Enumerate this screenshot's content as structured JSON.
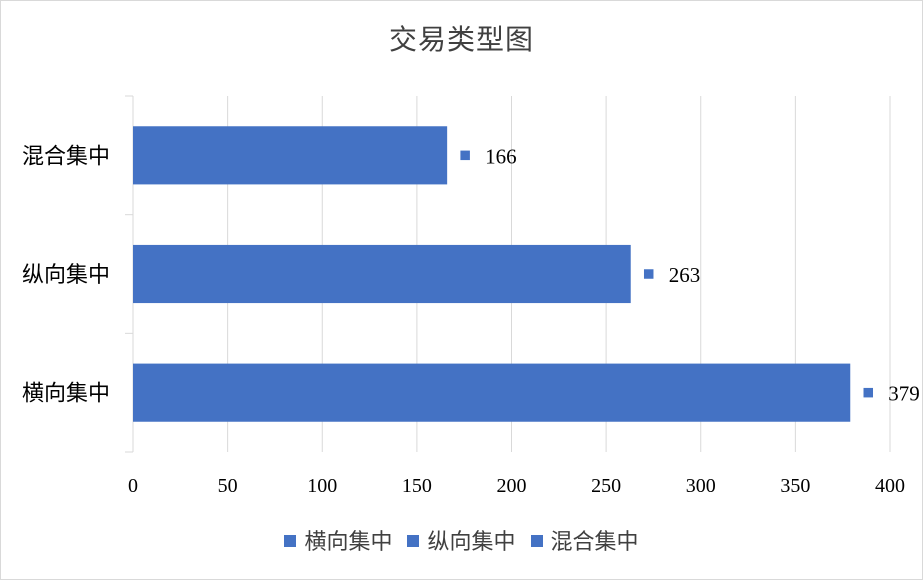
{
  "chart_data": {
    "type": "bar",
    "orientation": "horizontal",
    "title": "交易类型图",
    "categories": [
      "横向集中",
      "纵向集中",
      "混合集中"
    ],
    "values": [
      379,
      263,
      166
    ],
    "data_labels": [
      "379",
      "263",
      "166"
    ],
    "xlim": [
      0,
      400
    ],
    "x_ticks": [
      "0",
      "50",
      "100",
      "150",
      "200",
      "250",
      "300",
      "350",
      "400"
    ],
    "grid": "vertical",
    "legend": {
      "placement": "bottom",
      "entries": [
        "横向集中",
        "纵向集中",
        "混合集中"
      ]
    },
    "bar_color": "#4472c4"
  }
}
